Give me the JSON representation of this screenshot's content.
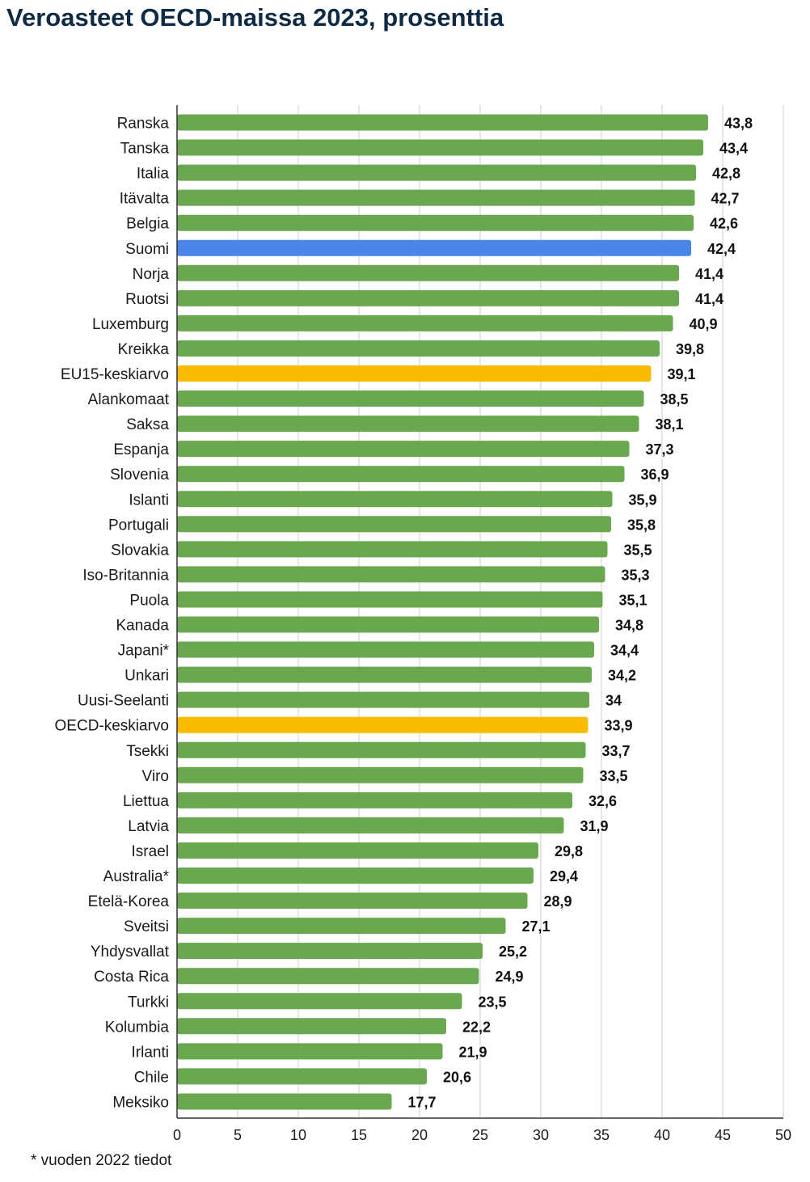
{
  "chart_data": {
    "type": "bar",
    "orientation": "horizontal",
    "title": "Veroasteet OECD-maissa 2023, prosenttia",
    "xlabel": "",
    "ylabel": "",
    "xlim": [
      0,
      50
    ],
    "x_ticks": [
      0,
      5,
      10,
      15,
      20,
      25,
      30,
      35,
      40,
      45,
      50
    ],
    "grid": "vertical",
    "legend": "none",
    "colors": {
      "default": "#6aa84f",
      "highlight": "#4a86e8",
      "average": "#f9bc02"
    },
    "categories": [
      "Ranska",
      "Tanska",
      "Italia",
      "Itävalta",
      "Belgia",
      "Suomi",
      "Norja",
      "Ruotsi",
      "Luxemburg",
      "Kreikka",
      "EU15-keskiarvo",
      "Alankomaat",
      "Saksa",
      "Espanja",
      "Slovenia",
      "Islanti",
      "Portugali",
      "Slovakia",
      "Iso-Britannia",
      "Puola",
      "Kanada",
      "Japani*",
      "Unkari",
      "Uusi-Seelanti",
      "OECD-keskiarvo",
      "Tsekki",
      "Viro",
      "Liettua",
      "Latvia",
      "Israel",
      "Australia*",
      "Etelä-Korea",
      "Sveitsi",
      "Yhdysvallat",
      "Costa Rica",
      "Turkki",
      "Kolumbia",
      "Irlanti",
      "Chile",
      "Meksiko"
    ],
    "values": [
      43.8,
      43.4,
      42.8,
      42.7,
      42.6,
      42.4,
      41.4,
      41.4,
      40.9,
      39.8,
      39.1,
      38.5,
      38.1,
      37.3,
      36.9,
      35.9,
      35.8,
      35.5,
      35.3,
      35.1,
      34.8,
      34.4,
      34.2,
      34,
      33.9,
      33.7,
      33.5,
      32.6,
      31.9,
      29.8,
      29.4,
      28.9,
      27.1,
      25.2,
      24.9,
      23.5,
      22.2,
      21.9,
      20.6,
      17.7
    ],
    "value_labels": [
      "43,8",
      "43,4",
      "42,8",
      "42,7",
      "42,6",
      "42,4",
      "41,4",
      "41,4",
      "40,9",
      "39,8",
      "39,1",
      "38,5",
      "38,1",
      "37,3",
      "36,9",
      "35,9",
      "35,8",
      "35,5",
      "35,3",
      "35,1",
      "34,8",
      "34,4",
      "34,2",
      "34",
      "33,9",
      "33,7",
      "33,5",
      "32,6",
      "31,9",
      "29,8",
      "29,4",
      "28,9",
      "27,1",
      "25,2",
      "24,9",
      "23,5",
      "22,2",
      "21,9",
      "20,6",
      "17,7"
    ],
    "bar_colors": [
      "default",
      "default",
      "default",
      "default",
      "default",
      "highlight",
      "default",
      "default",
      "default",
      "default",
      "average",
      "default",
      "default",
      "default",
      "default",
      "default",
      "default",
      "default",
      "default",
      "default",
      "default",
      "default",
      "default",
      "default",
      "average",
      "default",
      "default",
      "default",
      "default",
      "default",
      "default",
      "default",
      "default",
      "default",
      "default",
      "default",
      "default",
      "default",
      "default",
      "default"
    ],
    "footnote": "* vuoden 2022 tiedot"
  }
}
